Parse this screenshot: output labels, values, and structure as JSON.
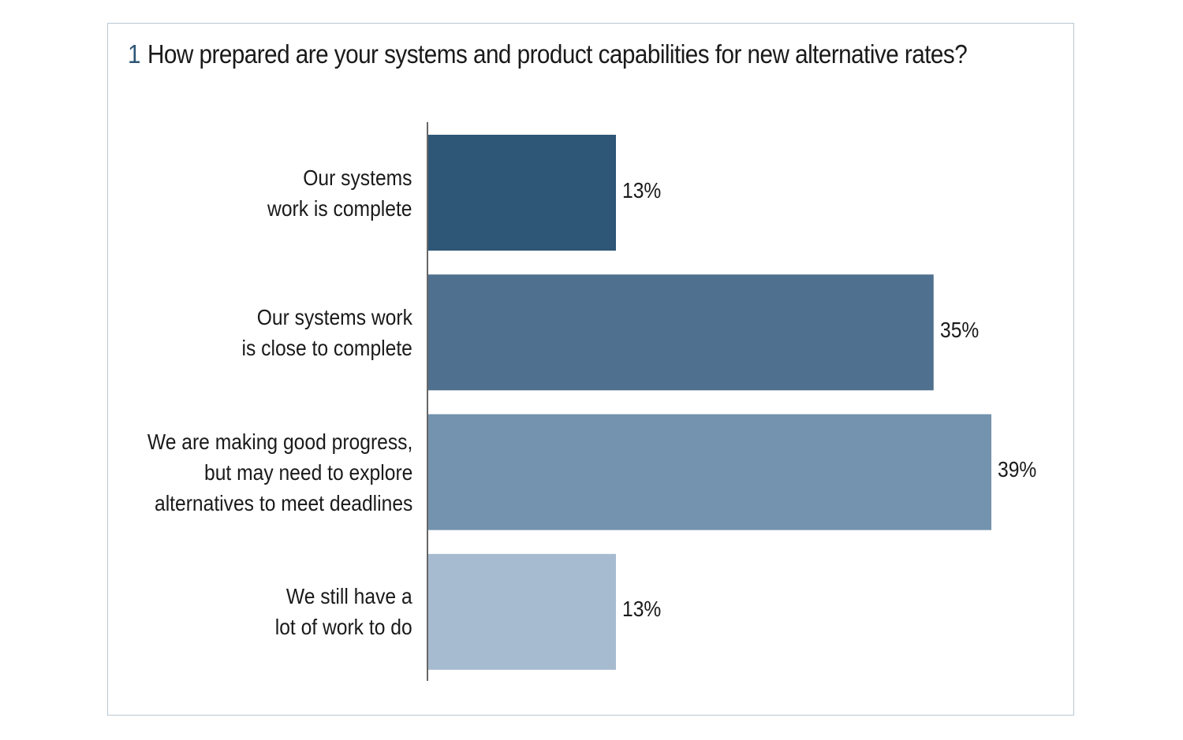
{
  "title": {
    "number": "1",
    "text": "How prepared are your systems and product capabilities for new alternative rates?"
  },
  "chart_data": {
    "type": "bar",
    "orientation": "horizontal",
    "title": "How prepared are your systems and product capabilities for new alternative rates?",
    "categories": [
      [
        "Our systems",
        "work is complete"
      ],
      [
        "Our systems work",
        "is close to complete"
      ],
      [
        "We are making good progress,",
        "but may need to explore",
        "alternatives to meet deadlines"
      ],
      [
        "We still have a",
        "lot of work to do"
      ]
    ],
    "values": [
      13,
      35,
      39,
      13
    ],
    "value_labels": [
      "13%",
      "35%",
      "39%",
      "13%"
    ],
    "unit": "%",
    "colors": [
      "#2e5676",
      "#4f708e",
      "#7393ae",
      "#a7bbd0"
    ],
    "xlim": [
      0,
      39
    ],
    "grid": false,
    "legend": "none"
  }
}
